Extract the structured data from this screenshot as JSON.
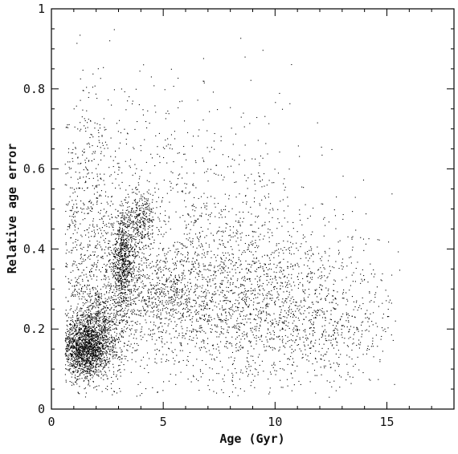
{
  "chart_data": {
    "type": "scatter",
    "xlabel": "Age (Gyr)",
    "ylabel": "Relative age error",
    "xlim": [
      0,
      18
    ],
    "ylim": [
      0,
      1
    ],
    "x_ticks": [
      0,
      5,
      10,
      15
    ],
    "x_tick_labels": [
      "0",
      "5",
      "10",
      "15"
    ],
    "y_ticks": [
      0,
      0.2,
      0.4,
      0.6,
      0.8,
      1
    ],
    "y_tick_labels": [
      "0",
      "0.2",
      "0.4",
      "0.6",
      "0.8",
      "1"
    ],
    "grid": false,
    "marker_color": "#000000",
    "point_clusters": [
      {
        "x_center": 1.5,
        "x_spread": 0.55,
        "y_center": 0.15,
        "y_spread": 0.035,
        "count": 1400
      },
      {
        "x_center": 2.0,
        "x_spread": 0.7,
        "y_center": 0.2,
        "y_spread": 0.06,
        "count": 900
      },
      {
        "x_center": 3.2,
        "x_spread": 0.3,
        "y_center": 0.37,
        "y_spread": 0.06,
        "count": 800
      },
      {
        "x_center": 4.0,
        "x_spread": 0.3,
        "y_center": 0.47,
        "y_spread": 0.04,
        "count": 300
      },
      {
        "x_center": 5.0,
        "x_spread": 1.0,
        "y_center": 0.28,
        "y_spread": 0.05,
        "count": 400
      },
      {
        "x_center": 7.0,
        "x_spread": 3.0,
        "y_center": 0.3,
        "y_spread": 0.13,
        "count": 1800
      },
      {
        "x_center": 10.5,
        "x_spread": 2.5,
        "y_center": 0.25,
        "y_spread": 0.1,
        "count": 900
      },
      {
        "x_center": 1.5,
        "x_spread": 0.8,
        "y_center": 0.45,
        "y_spread": 0.18,
        "count": 700
      },
      {
        "x_center": 6.0,
        "x_spread": 3.0,
        "y_center": 0.6,
        "y_spread": 0.12,
        "count": 350
      },
      {
        "x_center": 13.0,
        "x_spread": 1.5,
        "y_center": 0.2,
        "y_spread": 0.05,
        "count": 150
      }
    ]
  }
}
